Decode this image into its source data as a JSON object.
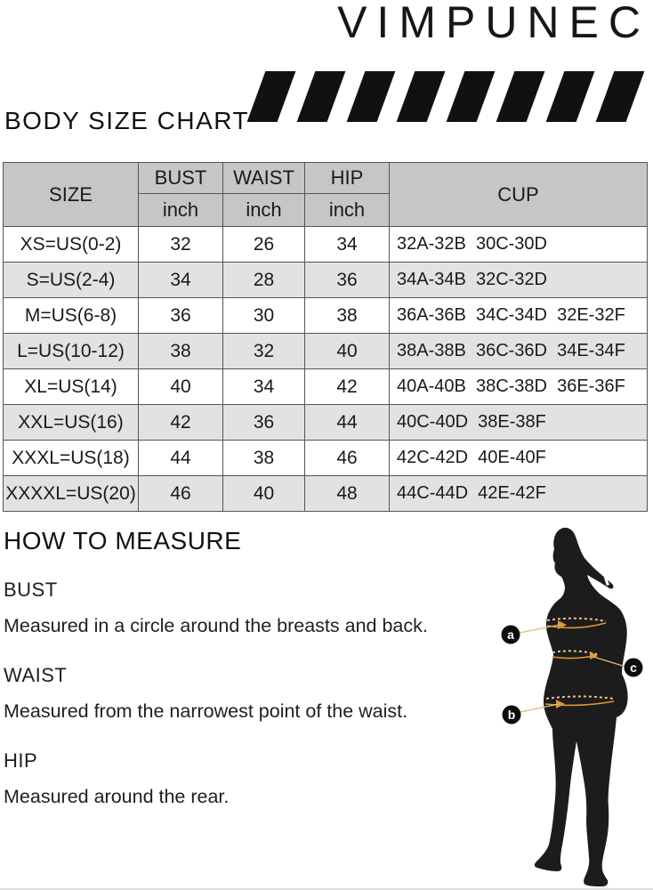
{
  "brand": "VIMPUNEC",
  "chart_title": "BODY SIZE CHART",
  "table": {
    "headers": {
      "size": "SIZE",
      "bust": "BUST",
      "waist": "WAIST",
      "hip": "HIP",
      "cup": "CUP",
      "unit": "inch"
    },
    "rows": [
      {
        "size": "XS=US(0-2)",
        "bust": "32",
        "waist": "26",
        "hip": "34",
        "cup": "32A-32B  30C-30D"
      },
      {
        "size": "S=US(2-4)",
        "bust": "34",
        "waist": "28",
        "hip": "36",
        "cup": "34A-34B  32C-32D"
      },
      {
        "size": "M=US(6-8)",
        "bust": "36",
        "waist": "30",
        "hip": "38",
        "cup": "36A-36B  34C-34D  32E-32F"
      },
      {
        "size": "L=US(10-12)",
        "bust": "38",
        "waist": "32",
        "hip": "40",
        "cup": "38A-38B  36C-36D  34E-34F"
      },
      {
        "size": "XL=US(14)",
        "bust": "40",
        "waist": "34",
        "hip": "42",
        "cup": "40A-40B  38C-38D  36E-36F"
      },
      {
        "size": "XXL=US(16)",
        "bust": "42",
        "waist": "36",
        "hip": "44",
        "cup": "40C-40D  38E-38F"
      },
      {
        "size": "XXXL=US(18)",
        "bust": "44",
        "waist": "38",
        "hip": "46",
        "cup": "42C-42D  40E-40F"
      },
      {
        "size": "XXXXL=US(20)",
        "bust": "46",
        "waist": "40",
        "hip": "48",
        "cup": "44C-44D  42E-42F"
      }
    ]
  },
  "how_to_measure": {
    "title": "HOW TO MEASURE",
    "items": [
      {
        "label": "BUST",
        "description": "Measured in a circle around the breasts and back."
      },
      {
        "label": "WAIST",
        "description": "Measured from the narrowest point of the waist."
      },
      {
        "label": "HIP",
        "description": "Measured around the rear."
      }
    ]
  },
  "figure": {
    "markers": [
      {
        "letter": "a",
        "measure": "bust"
      },
      {
        "letter": "b",
        "measure": "hip"
      },
      {
        "letter": "c",
        "measure": "waist"
      }
    ]
  },
  "colors": {
    "accent_orange": "#DD9933",
    "dash_tan": "#E9C489",
    "leader_line": "#E5B878",
    "silhouette": "#1c1c1c",
    "table_header_bg": "#c6c6c6",
    "table_alt_row_bg": "#e2e2e2",
    "table_border": "#555555",
    "text": "#1a1a1a"
  }
}
